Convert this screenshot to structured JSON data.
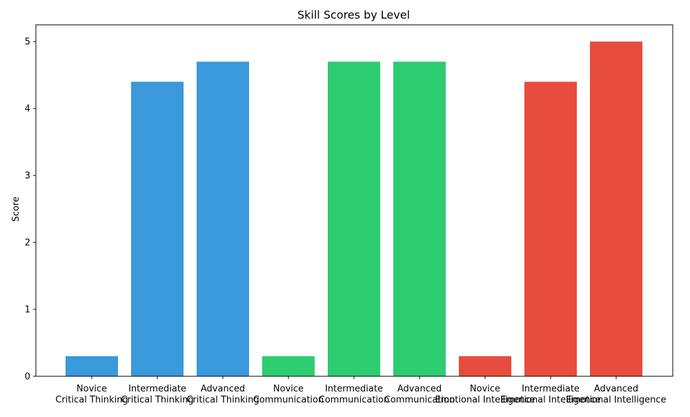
{
  "chart_data": {
    "type": "bar",
    "title": "Skill Scores by Level",
    "xlabel": "",
    "ylabel": "Score",
    "ylim": [
      0,
      5.25
    ],
    "yticks": [
      0,
      1,
      2,
      3,
      4,
      5
    ],
    "grid": false,
    "categories": [
      "Novice\nCritical Thinking",
      "Intermediate\nCritical Thinking",
      "Advanced\nCritical Thinking",
      "Novice\nCommunication",
      "Intermediate\nCommunication",
      "Advanced\nCommunication",
      "Novice\nEmotional Intelligence",
      "Intermediate\nEmotional Intelligence",
      "Advanced\nEmotional Intelligence"
    ],
    "values": [
      0.3,
      4.4,
      4.7,
      0.3,
      4.7,
      4.7,
      0.3,
      4.4,
      5.0
    ],
    "bar_colors": [
      "#3a99db",
      "#3a99db",
      "#3a99db",
      "#2ecc71",
      "#2ecc71",
      "#2ecc71",
      "#e74c3c",
      "#e74c3c",
      "#e74c3c"
    ]
  }
}
